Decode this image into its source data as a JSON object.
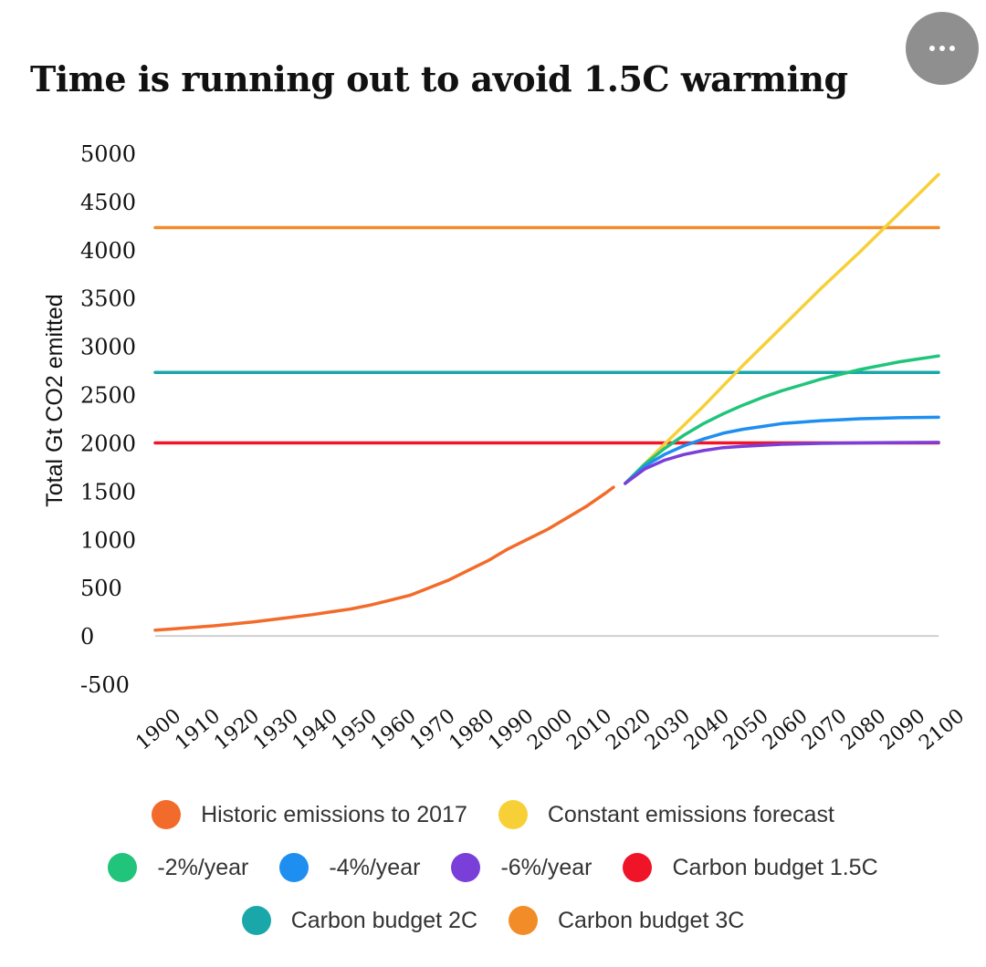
{
  "menu": {
    "icon": "more-options-icon"
  },
  "chart_data": {
    "type": "line",
    "title": "Time is running out to avoid 1.5C warming",
    "xlabel": "",
    "ylabel": "Total Gt CO2 emitted",
    "xlim": [
      1900,
      2100
    ],
    "ylim": [
      -500,
      5000
    ],
    "x_ticks": [
      "1900",
      "1910",
      "1920",
      "1930",
      "1940",
      "1950",
      "1960",
      "1970",
      "1980",
      "1990",
      "2000",
      "2010",
      "2020",
      "2030",
      "2040",
      "2050",
      "2060",
      "2070",
      "2080",
      "2090",
      "2100"
    ],
    "y_ticks": [
      "5000",
      "4500",
      "4000",
      "3500",
      "3000",
      "2500",
      "2000",
      "1500",
      "1000",
      "500",
      "0",
      "-500"
    ],
    "series": [
      {
        "name": "Historic emissions to 2017",
        "color": "#f26b2a",
        "x": [
          1900,
          1905,
          1910,
          1915,
          1920,
          1925,
          1930,
          1935,
          1940,
          1945,
          1950,
          1955,
          1960,
          1965,
          1970,
          1975,
          1980,
          1985,
          1990,
          1995,
          2000,
          2005,
          2010,
          2015,
          2017
        ],
        "y": [
          60,
          75,
          90,
          105,
          125,
          145,
          170,
          195,
          220,
          250,
          280,
          320,
          370,
          420,
          500,
          580,
          680,
          780,
          900,
          1000,
          1100,
          1220,
          1340,
          1480,
          1540
        ]
      },
      {
        "name": "Constant emissions forecast",
        "color": "#f7d038",
        "x": [
          2020,
          2030,
          2040,
          2050,
          2060,
          2070,
          2080,
          2090,
          2100
        ],
        "y": [
          1580,
          1985,
          2380,
          2800,
          3200,
          3600,
          3980,
          4380,
          4780
        ]
      },
      {
        "name": "-2%/year",
        "color": "#20c47a",
        "x": [
          2020,
          2025,
          2030,
          2035,
          2040,
          2045,
          2050,
          2055,
          2060,
          2065,
          2070,
          2075,
          2080,
          2085,
          2090,
          2095,
          2100
        ],
        "y": [
          1580,
          1780,
          1940,
          2080,
          2200,
          2300,
          2390,
          2470,
          2540,
          2600,
          2660,
          2710,
          2760,
          2800,
          2840,
          2870,
          2900
        ]
      },
      {
        "name": "-4%/year",
        "color": "#1f8ef1",
        "x": [
          2020,
          2025,
          2030,
          2035,
          2040,
          2045,
          2050,
          2055,
          2060,
          2065,
          2070,
          2075,
          2080,
          2085,
          2090,
          2095,
          2100
        ],
        "y": [
          1580,
          1760,
          1880,
          1970,
          2040,
          2100,
          2140,
          2170,
          2200,
          2215,
          2230,
          2240,
          2250,
          2255,
          2260,
          2263,
          2265
        ]
      },
      {
        "name": "-6%/year",
        "color": "#7a3fd8",
        "x": [
          2020,
          2025,
          2030,
          2035,
          2040,
          2045,
          2050,
          2055,
          2060,
          2065,
          2070,
          2075,
          2080,
          2085,
          2090,
          2095,
          2100
        ],
        "y": [
          1580,
          1730,
          1820,
          1880,
          1920,
          1950,
          1965,
          1975,
          1985,
          1990,
          1995,
          1998,
          2000,
          2002,
          2003,
          2004,
          2005
        ]
      },
      {
        "name": "Carbon budget 1.5C",
        "color": "#f01428",
        "x": [
          1900,
          2100
        ],
        "y": [
          2000,
          2000
        ]
      },
      {
        "name": "Carbon budget 2C",
        "color": "#1aa7aa",
        "x": [
          1900,
          2100
        ],
        "y": [
          2730,
          2730
        ]
      },
      {
        "name": "Carbon budget 3C",
        "color": "#f28c28",
        "x": [
          1900,
          2100
        ],
        "y": [
          4230,
          4230
        ]
      }
    ]
  },
  "legend": {
    "rows": [
      [
        {
          "label": "Historic emissions to 2017",
          "color": "#f26b2a"
        },
        {
          "label": "Constant emissions forecast",
          "color": "#f7d038"
        }
      ],
      [
        {
          "label": "-2%/year",
          "color": "#20c47a"
        },
        {
          "label": "-4%/year",
          "color": "#1f8ef1"
        },
        {
          "label": "-6%/year",
          "color": "#7a3fd8"
        },
        {
          "label": "Carbon budget 1.5C",
          "color": "#f01428"
        }
      ],
      [
        {
          "label": "Carbon budget 2C",
          "color": "#1aa7aa"
        },
        {
          "label": "Carbon budget 3C",
          "color": "#f28c28"
        }
      ]
    ]
  }
}
